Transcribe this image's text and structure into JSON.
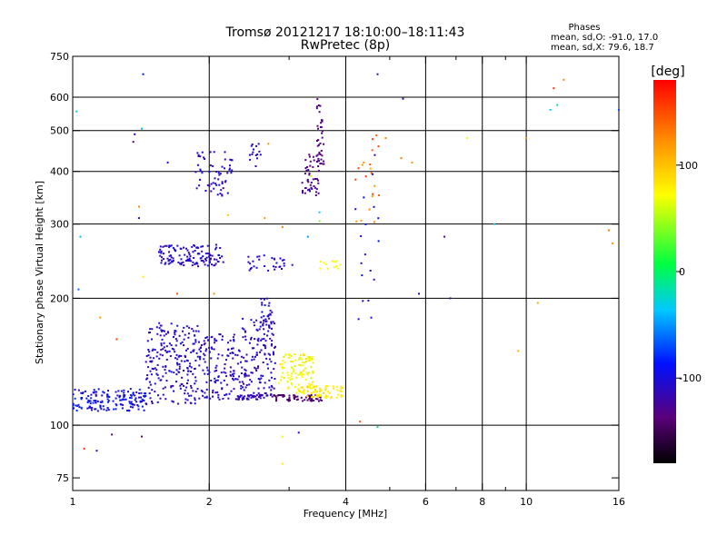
{
  "chart_data": {
    "type": "scatter",
    "title": "Tromsø 20121217 18:10:00–18:11:43",
    "subtitle": "RwPretec (8p)",
    "stats": {
      "title": "Phases",
      "line1": "mean, sd,O: -91.0, 17.0",
      "line2": "mean, sd,X:  79.6, 18.7"
    },
    "xlabel": "Frequency [MHz]",
    "ylabel": "Stationary phase Virtual Height [km]",
    "x_scale": "log",
    "y_scale": "log",
    "xlim": [
      1,
      16
    ],
    "ylim": [
      70,
      750
    ],
    "x_ticks": [
      1,
      2,
      4,
      6,
      8,
      10,
      16
    ],
    "x_tick_labels": [
      "1",
      "2",
      "4",
      "6",
      "8",
      "10",
      "16"
    ],
    "x_grid": [
      2,
      4,
      6,
      8,
      10
    ],
    "x_minor": [
      3,
      5,
      7,
      9
    ],
    "y_ticks": [
      75,
      100,
      200,
      300,
      400,
      500,
      600,
      750
    ],
    "y_tick_labels": [
      "75",
      "100",
      "200",
      "300",
      "400",
      "500",
      "600",
      "750"
    ],
    "y_grid": [
      100,
      200,
      300,
      400,
      500,
      600
    ],
    "grid": true,
    "colorbar": {
      "label": "[deg]",
      "min": -180,
      "max": 180,
      "ticks": [
        100,
        0,
        -100
      ],
      "tick_labels": [
        "100",
        "0",
        "-100"
      ]
    },
    "series": [
      {
        "clusters": [
          {
            "f": [
              1.0,
              1.45
            ],
            "h": [
              108,
              122
            ],
            "ph": [
              -115,
              -75
            ],
            "n": 160
          },
          {
            "f": [
              1.45,
              1.9
            ],
            "h": [
              112,
              175
            ],
            "ph": [
              -120,
              -95
            ],
            "n": 220
          },
          {
            "f": [
              1.9,
              2.35
            ],
            "h": [
              115,
              165
            ],
            "ph": [
              -120,
              -95
            ],
            "n": 140
          },
          {
            "f": [
              2.35,
              2.8
            ],
            "h": [
              117,
              180
            ],
            "ph": [
              -120,
              -95
            ],
            "n": 150
          },
          {
            "f": [
              2.6,
              2.75
            ],
            "h": [
              170,
              200
            ],
            "ph": [
              -115,
              -95
            ],
            "n": 25
          },
          {
            "f": [
              2.3,
              2.7
            ],
            "h": [
              115,
              118
            ],
            "ph": [
              -120,
              -110
            ],
            "n": 40
          },
          {
            "f": [
              2.75,
              3.55
            ],
            "h": [
              114,
              118
            ],
            "ph": [
              -150,
              -130
            ],
            "n": 60
          },
          {
            "f": [
              2.85,
              3.4
            ],
            "h": [
              120,
              148
            ],
            "ph": [
              60,
              85
            ],
            "n": 110
          },
          {
            "f": [
              3.1,
              3.95
            ],
            "h": [
              116,
              124
            ],
            "ph": [
              70,
              90
            ],
            "n": 70
          },
          {
            "f": [
              1.55,
              2.15
            ],
            "h": [
              238,
              268
            ],
            "ph": [
              -120,
              -95
            ],
            "n": 130
          },
          {
            "f": [
              2.4,
              2.95
            ],
            "h": [
              232,
              255
            ],
            "ph": [
              -120,
              -95
            ],
            "n": 30
          },
          {
            "f": [
              1.85,
              2.25
            ],
            "h": [
              350,
              445
            ],
            "ph": [
              -120,
              -95
            ],
            "n": 60
          },
          {
            "f": [
              2.45,
              2.6
            ],
            "h": [
              410,
              465
            ],
            "ph": [
              -115,
              -95
            ],
            "n": 15
          },
          {
            "f": [
              3.2,
              3.5
            ],
            "h": [
              350,
              440
            ],
            "ph": [
              -140,
              -120
            ],
            "n": 45
          },
          {
            "f": [
              3.45,
              3.58
            ],
            "h": [
              400,
              600
            ],
            "ph": [
              -140,
              -125
            ],
            "n": 40
          },
          {
            "f": [
              3.5,
              3.9
            ],
            "h": [
              235,
              245
            ],
            "ph": [
              65,
              80
            ],
            "n": 12
          },
          {
            "f": [
              4.2,
              4.75
            ],
            "h": [
              300,
              500
            ],
            "ph": [
              110,
              160
            ],
            "n": 20
          },
          {
            "f": [
              4.2,
              4.75
            ],
            "h": [
              165,
              470
            ],
            "ph": [
              -110,
              -90
            ],
            "n": 18
          }
        ],
        "points": [
          {
            "f": 1.43,
            "h": 680,
            "ph": -90
          },
          {
            "f": 1.02,
            "h": 555,
            "ph": -30
          },
          {
            "f": 1.42,
            "h": 505,
            "ph": -40
          },
          {
            "f": 1.37,
            "h": 490,
            "ph": -100
          },
          {
            "f": 1.36,
            "h": 470,
            "ph": -130
          },
          {
            "f": 1.62,
            "h": 420,
            "ph": -100
          },
          {
            "f": 1.04,
            "h": 280,
            "ph": -40
          },
          {
            "f": 1.03,
            "h": 210,
            "ph": -60
          },
          {
            "f": 1.4,
            "h": 330,
            "ph": 130
          },
          {
            "f": 1.4,
            "h": 310,
            "ph": -110
          },
          {
            "f": 1.43,
            "h": 225,
            "ph": 80
          },
          {
            "f": 1.15,
            "h": 180,
            "ph": 120
          },
          {
            "f": 1.25,
            "h": 160,
            "ph": 150
          },
          {
            "f": 1.7,
            "h": 205,
            "ph": 145
          },
          {
            "f": 1.22,
            "h": 95,
            "ph": -140
          },
          {
            "f": 1.06,
            "h": 88,
            "ph": 160
          },
          {
            "f": 1.13,
            "h": 87,
            "ph": -110
          },
          {
            "f": 1.42,
            "h": 94,
            "ph": -130
          },
          {
            "f": 2.9,
            "h": 94,
            "ph": 70
          },
          {
            "f": 2.9,
            "h": 81,
            "ph": 80
          },
          {
            "f": 3.15,
            "h": 96,
            "ph": -100
          },
          {
            "f": 4.7,
            "h": 99,
            "ph": -20
          },
          {
            "f": 4.3,
            "h": 102,
            "ph": 150
          },
          {
            "f": 4.7,
            "h": 680,
            "ph": -120
          },
          {
            "f": 5.35,
            "h": 595,
            "ph": -110
          },
          {
            "f": 4.9,
            "h": 480,
            "ph": 130
          },
          {
            "f": 5.3,
            "h": 430,
            "ph": 130
          },
          {
            "f": 5.6,
            "h": 420,
            "ph": 120
          },
          {
            "f": 5.8,
            "h": 205,
            "ph": -115
          },
          {
            "f": 6.6,
            "h": 280,
            "ph": -130
          },
          {
            "f": 6.8,
            "h": 200,
            "ph": -130
          },
          {
            "f": 7.4,
            "h": 480,
            "ph": 70
          },
          {
            "f": 8.5,
            "h": 300,
            "ph": -30
          },
          {
            "f": 9.6,
            "h": 150,
            "ph": 110
          },
          {
            "f": 10.0,
            "h": 480,
            "ph": 130
          },
          {
            "f": 10.6,
            "h": 195,
            "ph": 110
          },
          {
            "f": 11.5,
            "h": 630,
            "ph": 160
          },
          {
            "f": 12.1,
            "h": 660,
            "ph": 130
          },
          {
            "f": 11.3,
            "h": 560,
            "ph": -30
          },
          {
            "f": 11.7,
            "h": 575,
            "ph": -20
          },
          {
            "f": 15.2,
            "h": 290,
            "ph": 130
          },
          {
            "f": 15.5,
            "h": 270,
            "ph": 120
          },
          {
            "f": 16.0,
            "h": 560,
            "ph": -70
          },
          {
            "f": 2.65,
            "h": 310,
            "ph": 120
          },
          {
            "f": 2.9,
            "h": 295,
            "ph": 130
          },
          {
            "f": 3.05,
            "h": 240,
            "ph": -110
          },
          {
            "f": 2.7,
            "h": 465,
            "ph": 120
          },
          {
            "f": 2.2,
            "h": 315,
            "ph": 100
          },
          {
            "f": 2.05,
            "h": 205,
            "ph": 120
          },
          {
            "f": 3.35,
            "h": 390,
            "ph": 60
          },
          {
            "f": 3.5,
            "h": 320,
            "ph": -30
          },
          {
            "f": 3.5,
            "h": 305,
            "ph": 40
          },
          {
            "f": 3.3,
            "h": 280,
            "ph": -50
          }
        ]
      }
    ]
  }
}
